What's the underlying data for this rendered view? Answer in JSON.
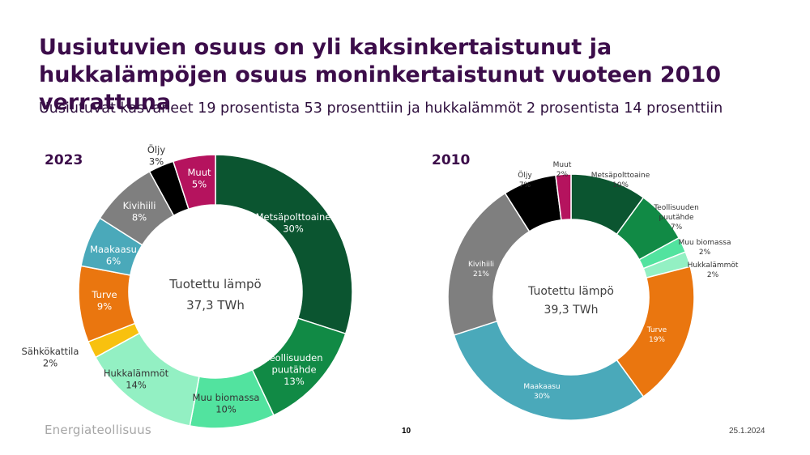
{
  "title": "Uusiutuvien osuus on yli kaksinkertaistunut ja hukkalämpöjen osuus moninkertaistunut vuoteen 2010 verrattuna",
  "subtitle": "Uusiutuvat kasvaneet 19 prosentista 53 prosenttiin ja hukkalämmöt 2 prosentista 14 prosenttiin",
  "footer": {
    "logo": "Energiateollisuus",
    "page": "10",
    "date": "25.1.2024"
  },
  "chart_data": [
    {
      "type": "pie",
      "variant": "donut",
      "year": "2023",
      "center_label": "Tuotettu lämpö",
      "center_value": "37,3 TWh",
      "slices": [
        {
          "name": "Metsäpolttoaine",
          "value": 30,
          "label": "30%",
          "color": "#0b5530"
        },
        {
          "name": "Teollisuuden puutähde",
          "value": 13,
          "label": "13%",
          "color": "#118a45"
        },
        {
          "name": "Muu biomassa",
          "value": 10,
          "label": "10%",
          "color": "#52e39f"
        },
        {
          "name": "Hukkalämmöt",
          "value": 14,
          "label": "14%",
          "color": "#93f0c3"
        },
        {
          "name": "Sähkökattila",
          "value": 2,
          "label": "2%",
          "color": "#f8c10f"
        },
        {
          "name": "Turve",
          "value": 9,
          "label": "9%",
          "color": "#ea760f"
        },
        {
          "name": "Maakaasu",
          "value": 6,
          "label": "6%",
          "color": "#4aa9ba"
        },
        {
          "name": "Kivihiili",
          "value": 8,
          "label": "8%",
          "color": "#7f7f7f"
        },
        {
          "name": "Öljy",
          "value": 3,
          "label": "3%",
          "color": "#000000"
        },
        {
          "name": "Muut",
          "value": 5,
          "label": "5%",
          "color": "#b5135e"
        }
      ]
    },
    {
      "type": "pie",
      "variant": "donut",
      "year": "2010",
      "center_label": "Tuotettu lämpö",
      "center_value": "39,3 TWh",
      "slices": [
        {
          "name": "Metsäpolttoaine",
          "value": 10,
          "label": "10%",
          "color": "#0b5530"
        },
        {
          "name": "Teollisuuden puutähde",
          "value": 7,
          "label": "7%",
          "color": "#118a45"
        },
        {
          "name": "Muu biomassa",
          "value": 2,
          "label": "2%",
          "color": "#52e39f"
        },
        {
          "name": "Hukkalämmöt",
          "value": 2,
          "label": "2%",
          "color": "#93f0c3"
        },
        {
          "name": "Turve",
          "value": 19,
          "label": "19%",
          "color": "#ea760f"
        },
        {
          "name": "Maakaasu",
          "value": 30,
          "label": "30%",
          "color": "#4aa9ba"
        },
        {
          "name": "Kivihiili",
          "value": 21,
          "label": "21%",
          "color": "#7f7f7f"
        },
        {
          "name": "Öljy",
          "value": 7,
          "label": "7%",
          "color": "#000000"
        },
        {
          "name": "Muut",
          "value": 2,
          "label": "2%",
          "color": "#b5135e"
        }
      ]
    }
  ]
}
